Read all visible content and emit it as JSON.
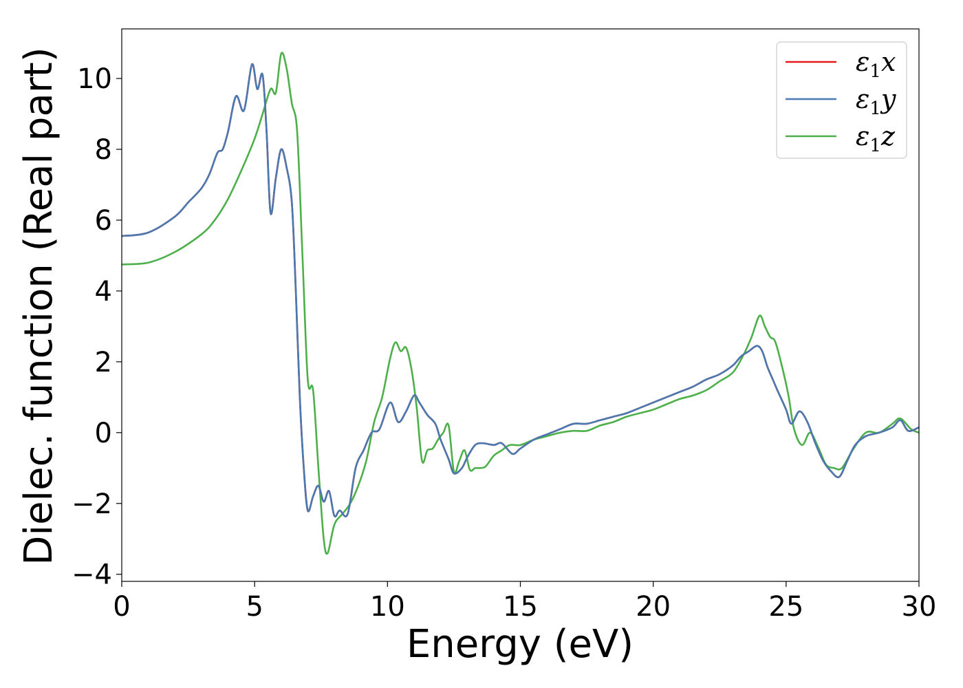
{
  "chart_data": {
    "type": "line",
    "title": "",
    "xlabel": "Energy (eV)",
    "ylabel": "Dielec. function (Real part)",
    "xlim": [
      0,
      30
    ],
    "ylim": [
      -4.2,
      11.4
    ],
    "xticks": [
      0,
      5,
      10,
      15,
      20,
      25,
      30
    ],
    "xtick_labels": [
      "0",
      "5",
      "10",
      "15",
      "20",
      "25",
      "30"
    ],
    "yticks": [
      -4,
      -2,
      0,
      2,
      4,
      6,
      8,
      10
    ],
    "ytick_labels": [
      "−4",
      "−2",
      "0",
      "2",
      "4",
      "6",
      "8",
      "10"
    ],
    "grid": false,
    "legend_position": "top-right",
    "series": [
      {
        "name": "ε₁x",
        "legend_main": "ε",
        "legend_sub": "1",
        "legend_suffix": "x",
        "color": "#e41a1c",
        "x": [
          0,
          1,
          2,
          2.5,
          3,
          3.3,
          3.6,
          3.8,
          4.0,
          4.3,
          4.6,
          4.9,
          5.1,
          5.3,
          5.45,
          5.6,
          5.8,
          6.0,
          6.2,
          6.4,
          6.55,
          6.7,
          6.85,
          7.0,
          7.2,
          7.4,
          7.6,
          7.8,
          8.0,
          8.2,
          8.5,
          8.8,
          9.1,
          9.4,
          9.7,
          10.1,
          10.4,
          10.7,
          11.0,
          11.2,
          11.5,
          11.8,
          12.0,
          12.3,
          12.5,
          12.8,
          13.0,
          13.3,
          13.6,
          14.0,
          14.3,
          14.7,
          15.0,
          15.5,
          16.0,
          16.5,
          17.0,
          17.5,
          18.0,
          18.5,
          19.0,
          19.5,
          20.0,
          20.5,
          21.0,
          21.5,
          22.0,
          22.5,
          23.0,
          23.3,
          23.6,
          23.9,
          24.1,
          24.3,
          24.5,
          24.7,
          25.0,
          25.2,
          25.5,
          25.8,
          26.1,
          26.4,
          26.7,
          27.0,
          27.3,
          27.6,
          28.0,
          28.5,
          29.0,
          29.3,
          29.6,
          30.0
        ],
        "y": [
          5.55,
          5.65,
          6.1,
          6.5,
          6.9,
          7.3,
          7.9,
          8.0,
          8.5,
          9.5,
          9.1,
          10.4,
          9.7,
          10.1,
          8.5,
          6.2,
          7.2,
          8.0,
          7.5,
          6.5,
          4.0,
          1.0,
          -1.0,
          -2.2,
          -1.8,
          -1.5,
          -1.95,
          -1.65,
          -2.35,
          -2.2,
          -2.3,
          -1.0,
          -0.5,
          0.0,
          0.1,
          0.85,
          0.3,
          0.6,
          1.05,
          0.85,
          0.5,
          0.25,
          -0.2,
          -0.75,
          -1.15,
          -1.0,
          -0.7,
          -0.35,
          -0.3,
          -0.35,
          -0.3,
          -0.6,
          -0.45,
          -0.2,
          -0.05,
          0.1,
          0.25,
          0.25,
          0.35,
          0.45,
          0.55,
          0.7,
          0.85,
          1.0,
          1.15,
          1.3,
          1.5,
          1.65,
          1.9,
          2.15,
          2.3,
          2.45,
          2.3,
          1.85,
          1.5,
          1.15,
          0.65,
          0.25,
          0.6,
          0.3,
          -0.3,
          -0.8,
          -1.1,
          -1.25,
          -0.8,
          -0.35,
          -0.1,
          0.0,
          0.15,
          0.35,
          0.05,
          0.15
        ]
      },
      {
        "name": "ε₁y",
        "legend_main": "ε",
        "legend_sub": "1",
        "legend_suffix": "y",
        "color": "#4a78b0",
        "x": [
          0,
          1,
          2,
          2.5,
          3,
          3.3,
          3.6,
          3.8,
          4.0,
          4.3,
          4.6,
          4.9,
          5.1,
          5.3,
          5.45,
          5.6,
          5.8,
          6.0,
          6.2,
          6.4,
          6.55,
          6.7,
          6.85,
          7.0,
          7.2,
          7.4,
          7.6,
          7.8,
          8.0,
          8.2,
          8.5,
          8.8,
          9.1,
          9.4,
          9.7,
          10.1,
          10.4,
          10.7,
          11.0,
          11.2,
          11.5,
          11.8,
          12.0,
          12.3,
          12.5,
          12.8,
          13.0,
          13.3,
          13.6,
          14.0,
          14.3,
          14.7,
          15.0,
          15.5,
          16.0,
          16.5,
          17.0,
          17.5,
          18.0,
          18.5,
          19.0,
          19.5,
          20.0,
          20.5,
          21.0,
          21.5,
          22.0,
          22.5,
          23.0,
          23.3,
          23.6,
          23.9,
          24.1,
          24.3,
          24.5,
          24.7,
          25.0,
          25.2,
          25.5,
          25.8,
          26.1,
          26.4,
          26.7,
          27.0,
          27.3,
          27.6,
          28.0,
          28.5,
          29.0,
          29.3,
          29.6,
          30.0
        ],
        "y": [
          5.55,
          5.65,
          6.1,
          6.5,
          6.9,
          7.3,
          7.9,
          8.0,
          8.5,
          9.5,
          9.1,
          10.4,
          9.7,
          10.1,
          8.5,
          6.2,
          7.2,
          8.0,
          7.5,
          6.5,
          4.0,
          1.0,
          -1.0,
          -2.2,
          -1.8,
          -1.5,
          -1.95,
          -1.65,
          -2.35,
          -2.2,
          -2.3,
          -1.0,
          -0.5,
          0.0,
          0.1,
          0.85,
          0.3,
          0.6,
          1.05,
          0.85,
          0.5,
          0.25,
          -0.2,
          -0.75,
          -1.15,
          -1.0,
          -0.7,
          -0.35,
          -0.3,
          -0.35,
          -0.3,
          -0.6,
          -0.45,
          -0.2,
          -0.05,
          0.1,
          0.25,
          0.25,
          0.35,
          0.45,
          0.55,
          0.7,
          0.85,
          1.0,
          1.15,
          1.3,
          1.5,
          1.65,
          1.9,
          2.15,
          2.3,
          2.45,
          2.3,
          1.85,
          1.5,
          1.15,
          0.65,
          0.25,
          0.6,
          0.3,
          -0.3,
          -0.8,
          -1.1,
          -1.25,
          -0.8,
          -0.35,
          -0.1,
          0.0,
          0.15,
          0.35,
          0.05,
          0.15
        ]
      },
      {
        "name": "ε₁z",
        "legend_main": "ε",
        "legend_sub": "1",
        "legend_suffix": "z",
        "color": "#4daf4a",
        "x": [
          0,
          1,
          2,
          3,
          3.5,
          4.0,
          4.5,
          5.0,
          5.3,
          5.6,
          5.8,
          6.0,
          6.2,
          6.4,
          6.6,
          6.8,
          7.0,
          7.2,
          7.4,
          7.6,
          7.75,
          8.0,
          8.3,
          8.6,
          8.9,
          9.2,
          9.5,
          9.8,
          10.1,
          10.3,
          10.5,
          10.7,
          10.9,
          11.1,
          11.3,
          11.5,
          11.7,
          11.9,
          12.1,
          12.3,
          12.5,
          12.7,
          12.9,
          13.1,
          13.3,
          13.5,
          13.7,
          14.0,
          14.3,
          14.6,
          15.0,
          15.5,
          16.0,
          16.5,
          17.0,
          17.5,
          18.0,
          18.5,
          19.0,
          19.5,
          20.0,
          20.5,
          21.0,
          21.5,
          22.0,
          22.5,
          23.0,
          23.4,
          23.7,
          24.0,
          24.2,
          24.4,
          24.6,
          24.9,
          25.1,
          25.3,
          25.6,
          25.9,
          26.2,
          26.5,
          26.8,
          27.1,
          27.5,
          28.0,
          28.5,
          29.0,
          29.3,
          29.7,
          30.0
        ],
        "y": [
          4.75,
          4.8,
          5.1,
          5.6,
          6.0,
          6.6,
          7.4,
          8.3,
          9.0,
          9.7,
          9.6,
          10.7,
          10.3,
          9.3,
          8.5,
          5.0,
          1.5,
          1.2,
          -1.0,
          -3.0,
          -3.4,
          -2.6,
          -2.3,
          -2.0,
          -1.5,
          -0.8,
          0.3,
          1.0,
          2.1,
          2.55,
          2.3,
          2.4,
          1.8,
          0.7,
          -0.8,
          -0.5,
          -0.45,
          -0.2,
          0.0,
          0.2,
          -1.1,
          -0.8,
          -0.5,
          -1.05,
          -1.0,
          -1.0,
          -0.95,
          -0.65,
          -0.5,
          -0.35,
          -0.35,
          -0.2,
          -0.1,
          0.0,
          0.05,
          0.05,
          0.2,
          0.3,
          0.45,
          0.55,
          0.65,
          0.8,
          0.95,
          1.05,
          1.2,
          1.45,
          1.7,
          2.2,
          2.7,
          3.3,
          3.0,
          2.7,
          2.55,
          1.7,
          1.0,
          0.1,
          -0.35,
          0.0,
          -0.4,
          -0.9,
          -1.0,
          -1.0,
          -0.5,
          0.0,
          0.0,
          0.25,
          0.4,
          0.1,
          0.0
        ]
      }
    ]
  }
}
